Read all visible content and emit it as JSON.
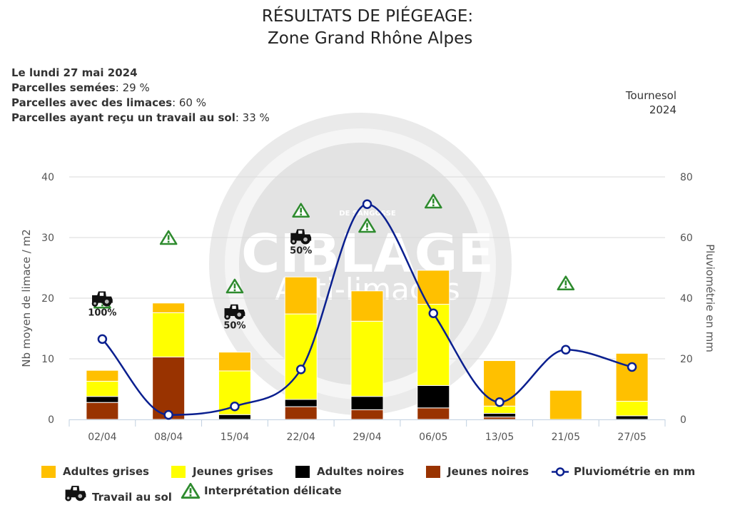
{
  "title": {
    "line1": "RÉSULTATS DE PIÉGEAGE:",
    "line2": " Zone Grand Rhône Alpes"
  },
  "info": {
    "date": "Le lundi 27 mai 2024",
    "sown_label": "Parcelles semées",
    "sown_value": ": 29 %",
    "slugs_label": "Parcelles avec des limaces",
    "slugs_value": ": 60 %",
    "tillage_label": "Parcelles ayant reçu un travail au sol",
    "tillage_value": ": 33 %"
  },
  "crop": {
    "name": "Tournesol",
    "year": "2024"
  },
  "watermark": {
    "text1": "CIBLAGE",
    "text2": "Anti-limaces",
    "text3": "DE SANGOSSE"
  },
  "chart_data": {
    "type": "bar",
    "stacked": true,
    "categories": [
      "02/04",
      "08/04",
      "15/04",
      "22/04",
      "29/04",
      "06/05",
      "13/05",
      "21/05",
      "27/05"
    ],
    "ylabel": "Nb moyen de limace / m2",
    "y2label": "Pluviométrie en mm",
    "ylim": [
      0,
      40
    ],
    "y2lim": [
      0,
      80
    ],
    "yticks": [
      "0",
      "10",
      "20",
      "30",
      "40"
    ],
    "y2ticks": [
      "0",
      "20",
      "40",
      "60",
      "80"
    ],
    "grid": true,
    "series": [
      {
        "name": "Jeunes noires",
        "color": "#993300",
        "values": [
          2.8,
          10.3,
          0,
          2.1,
          1.6,
          1.9,
          0.4,
          0,
          0
        ]
      },
      {
        "name": "Adultes noires",
        "color": "#000000",
        "values": [
          1.0,
          0,
          0.8,
          1.2,
          2.2,
          3.7,
          0.6,
          0,
          0.6
        ]
      },
      {
        "name": "Jeunes grises",
        "color": "#FFFF00",
        "values": [
          2.5,
          7.3,
          7.2,
          14.1,
          12.4,
          13.4,
          1.2,
          0,
          2.4
        ]
      },
      {
        "name": "Adultes grises",
        "color": "#FFC000",
        "values": [
          1.8,
          1.6,
          3.1,
          6.1,
          5.0,
          5.6,
          7.5,
          4.8,
          7.9
        ]
      }
    ],
    "line": {
      "name": "Pluviométrie en mm",
      "color": "#0a1f8f",
      "axis": "right",
      "values": [
        26.5,
        1.5,
        4.3,
        16.5,
        71.0,
        35.0,
        5.7,
        23.0,
        17.3
      ]
    },
    "tillage": [
      {
        "category": "02/04",
        "label": "100%"
      },
      {
        "category": "15/04",
        "label": "50%"
      },
      {
        "category": "22/04",
        "label": "50%"
      }
    ],
    "warnings": [
      {
        "category": "02/04",
        "y": 19.5
      },
      {
        "category": "08/04",
        "y": 30.0
      },
      {
        "category": "15/04",
        "y": 22.0
      },
      {
        "category": "22/04",
        "y": 34.5
      },
      {
        "category": "29/04",
        "y": 32.0
      },
      {
        "category": "06/05",
        "y": 36.0
      },
      {
        "category": "21/05",
        "y": 22.5
      }
    ],
    "legend_position": "bottom"
  },
  "legend": {
    "adultes_grises": "Adultes grises",
    "jeunes_grises": "Jeunes grises",
    "adultes_noires": "Adultes noires",
    "jeunes_noires": "Jeunes noires",
    "pluvio": "Pluviométrie en mm",
    "travail": "Travail au sol",
    "interpretation": "Interprétation délicate"
  }
}
